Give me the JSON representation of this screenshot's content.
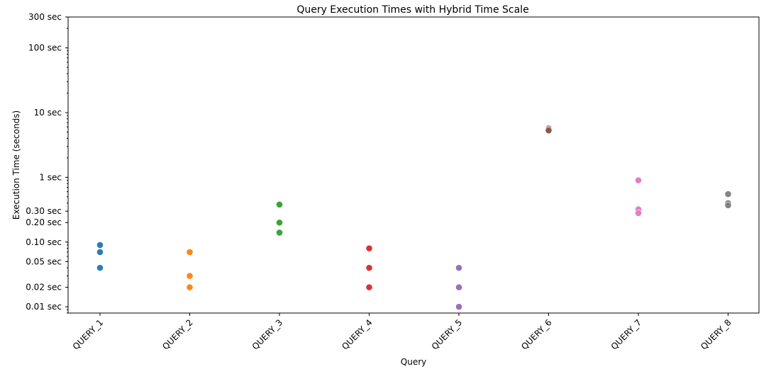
{
  "chart_data": {
    "type": "scatter",
    "title": "Query Execution Times with Hybrid Time Scale",
    "xlabel": "Query",
    "ylabel": "Execution Time (seconds)",
    "yscale": "log",
    "ylim": [
      0.008,
      300
    ],
    "grid": false,
    "categories": [
      "QUERY_1",
      "QUERY_2",
      "QUERY_3",
      "QUERY_4",
      "QUERY_5",
      "QUERY_6",
      "QUERY_7",
      "QUERY_8"
    ],
    "yticks": [
      {
        "value": 0.01,
        "label": "0.01 sec"
      },
      {
        "value": 0.02,
        "label": "0.02 sec"
      },
      {
        "value": 0.05,
        "label": "0.05 sec"
      },
      {
        "value": 0.1,
        "label": "0.10 sec"
      },
      {
        "value": 0.2,
        "label": "0.20 sec"
      },
      {
        "value": 0.3,
        "label": "0.30 sec"
      },
      {
        "value": 1,
        "label": "1 sec"
      },
      {
        "value": 10,
        "label": "10 sec"
      },
      {
        "value": 100,
        "label": "100 sec"
      },
      {
        "value": 300,
        "label": "300 sec"
      }
    ],
    "series": [
      {
        "category": "QUERY_1",
        "color": "#1f77b4",
        "values": [
          0.09,
          0.07,
          0.04
        ]
      },
      {
        "category": "QUERY_2",
        "color": "#ff7f0e",
        "values": [
          0.07,
          0.03,
          0.02
        ]
      },
      {
        "category": "QUERY_3",
        "color": "#2ca02c",
        "values": [
          0.38,
          0.2,
          0.14
        ]
      },
      {
        "category": "QUERY_4",
        "color": "#d62728",
        "values": [
          0.08,
          0.04,
          0.02
        ]
      },
      {
        "category": "QUERY_5",
        "color": "#9467bd",
        "values": [
          0.04,
          0.02,
          0.01
        ]
      },
      {
        "category": "QUERY_6",
        "color": "#8c564b",
        "values": [
          5.7,
          5.5,
          5.3
        ]
      },
      {
        "category": "QUERY_7",
        "color": "#e377c2",
        "values": [
          0.9,
          0.32,
          0.28
        ]
      },
      {
        "category": "QUERY_8",
        "color": "#7f7f7f",
        "values": [
          0.55,
          0.4,
          0.37
        ]
      }
    ]
  }
}
